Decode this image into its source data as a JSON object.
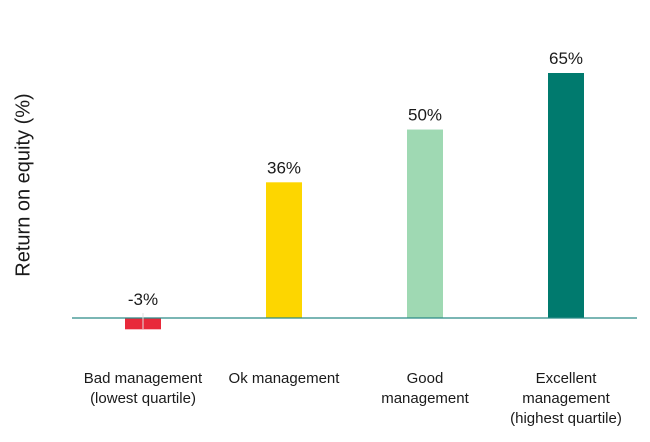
{
  "chart_data": {
    "type": "bar",
    "title": "",
    "xlabel": "",
    "ylabel": "Return on equity (%)",
    "categories": [
      [
        "Bad management",
        "(lowest quartile)"
      ],
      [
        "Ok management"
      ],
      [
        "Good",
        "management"
      ],
      [
        "Excellent",
        "management",
        "(highest quartile)"
      ]
    ],
    "values": [
      -3,
      36,
      50,
      65
    ],
    "data_labels": [
      "-3%",
      "36%",
      "50%",
      "65%"
    ],
    "colors": [
      "#e8293a",
      "#fdd600",
      "#9fd9b3",
      "#007a6e"
    ],
    "axis_color": "#2a8a86",
    "ylim": [
      -3,
      65
    ],
    "grid": false,
    "legend": "none"
  }
}
